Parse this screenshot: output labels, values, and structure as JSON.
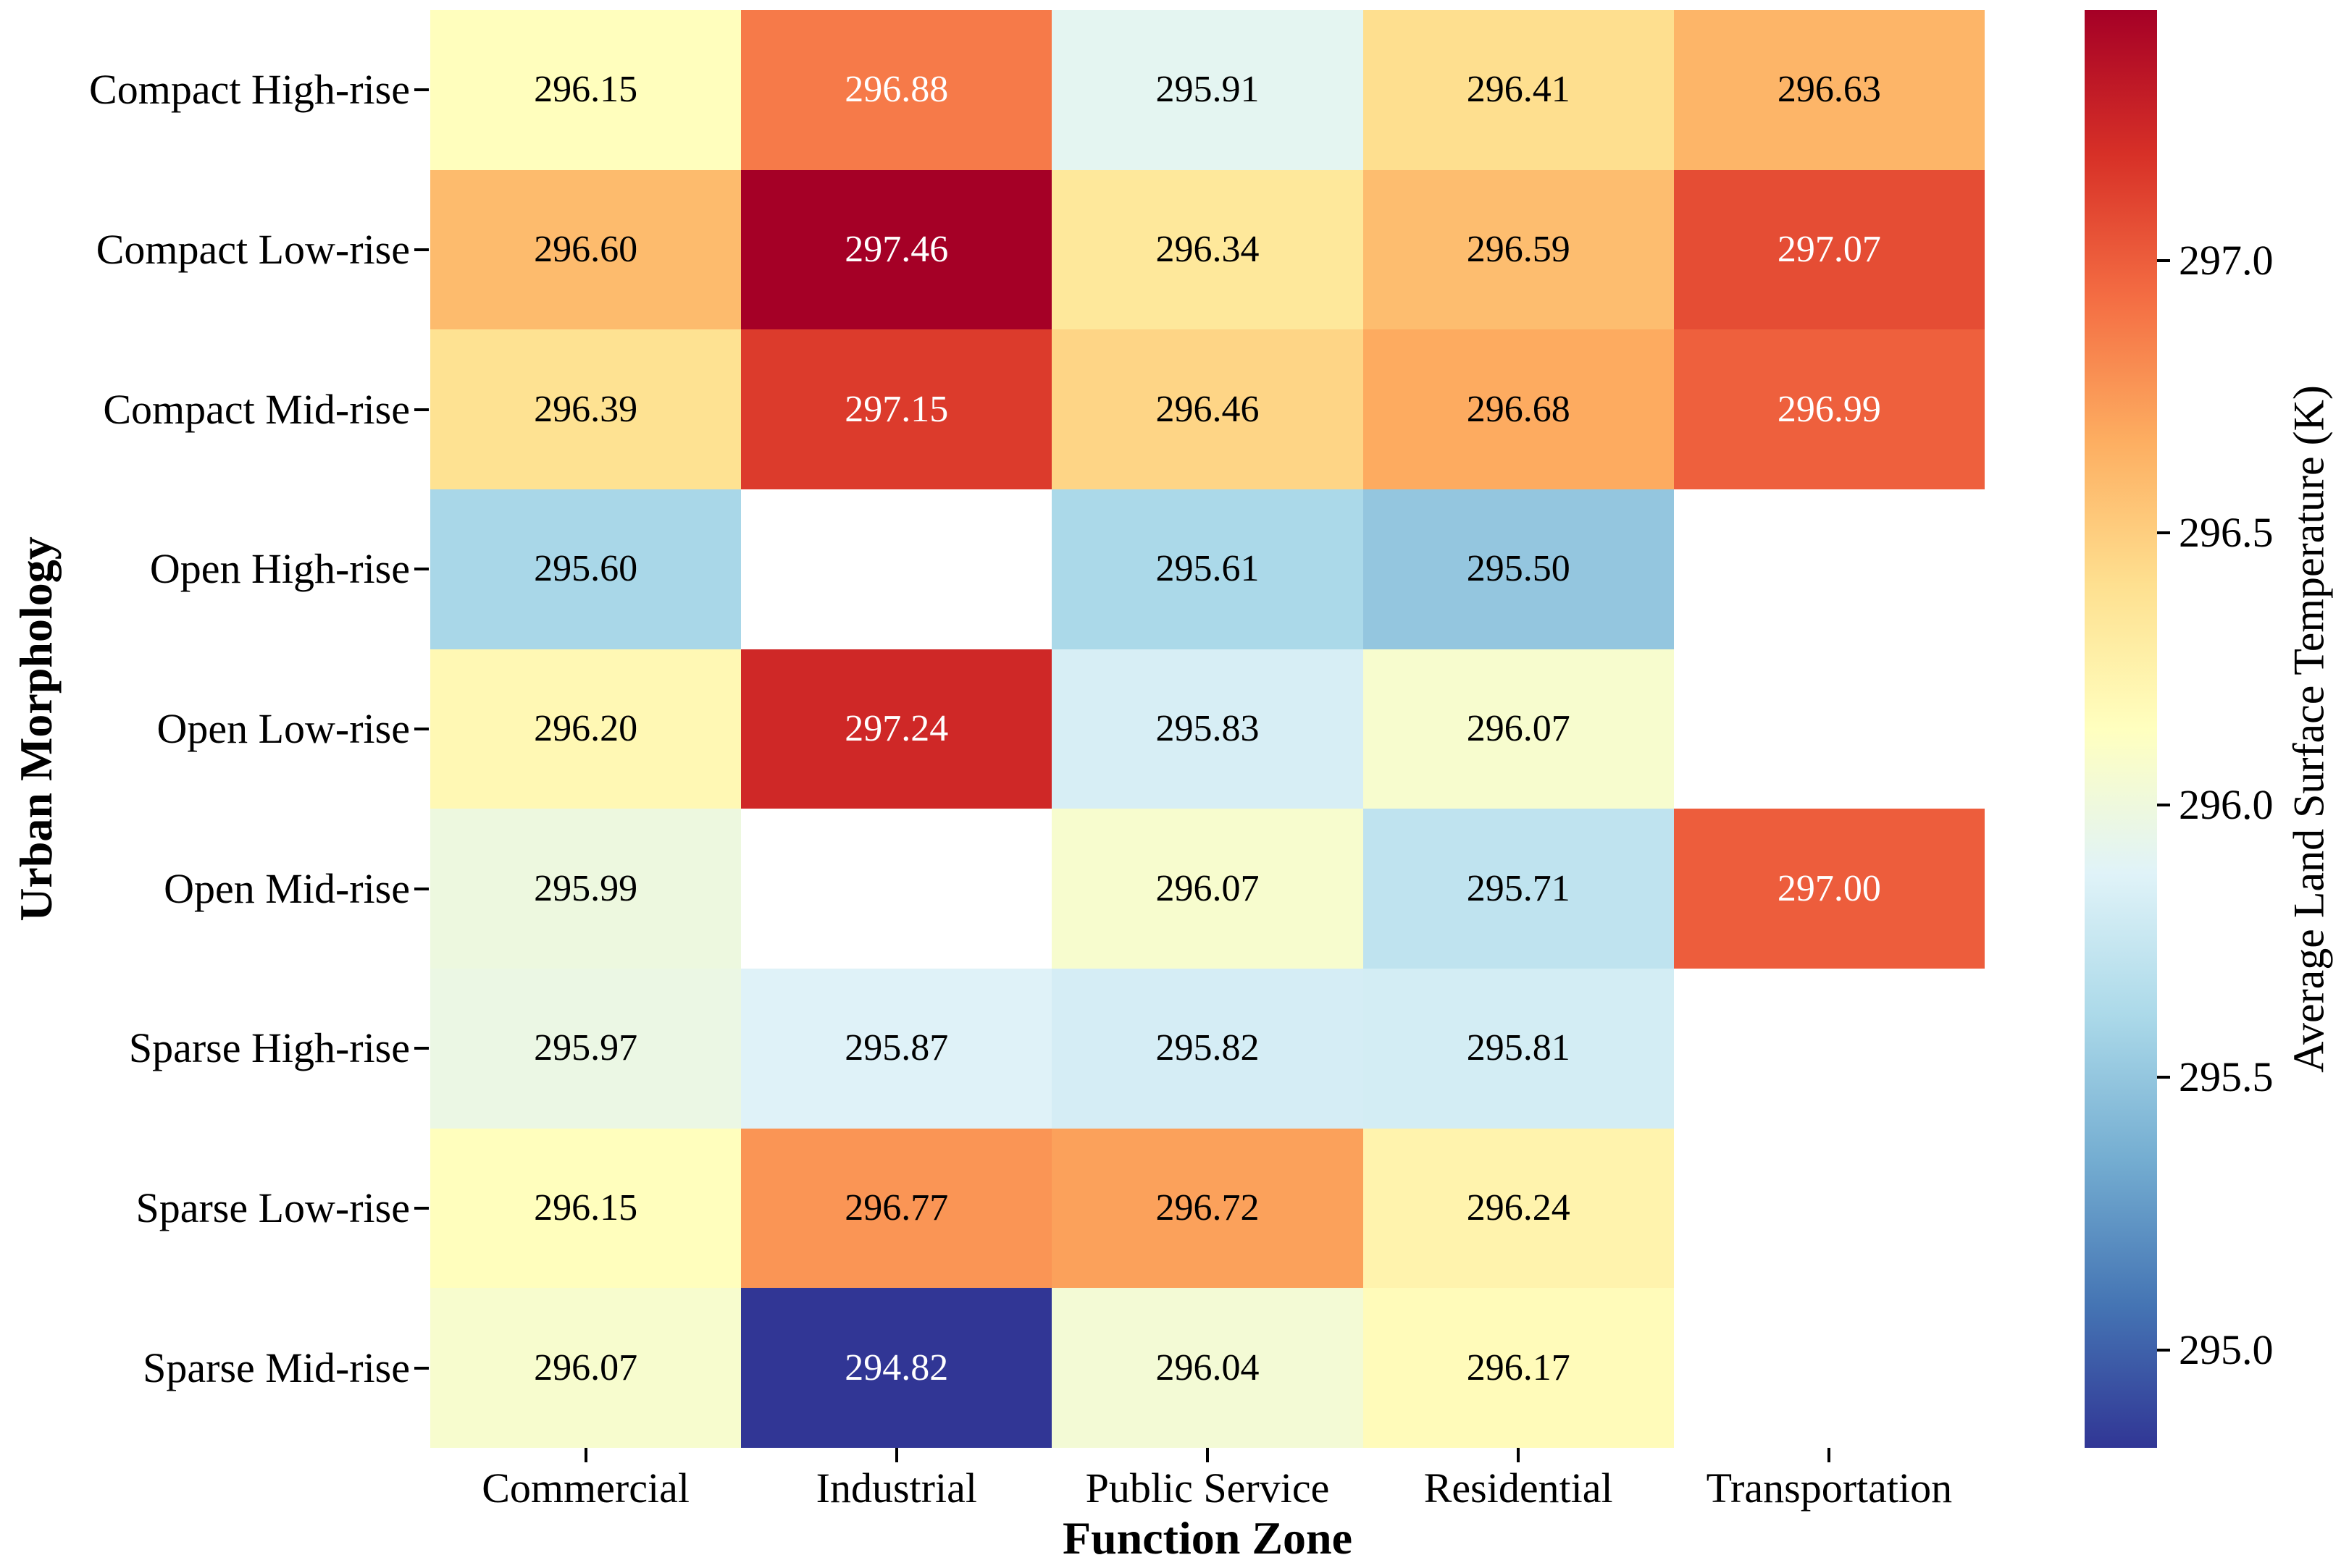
{
  "chart_data": {
    "type": "heatmap",
    "xlabel": "Function Zone",
    "ylabel": "Urban Morphology",
    "colorbar_label": "Average Land Surface Temperature (K)",
    "columns": [
      "Commercial",
      "Industrial",
      "Public Service",
      "Residential",
      "Transportation"
    ],
    "rows": [
      "Compact High-rise",
      "Compact Low-rise",
      "Compact Mid-rise",
      "Open High-rise",
      "Open Low-rise",
      "Open Mid-rise",
      "Sparse High-rise",
      "Sparse Low-rise",
      "Sparse Mid-rise"
    ],
    "values": [
      [
        296.15,
        296.88,
        295.91,
        296.41,
        296.63
      ],
      [
        296.6,
        297.46,
        296.34,
        296.59,
        297.07
      ],
      [
        296.39,
        297.15,
        296.46,
        296.68,
        296.99
      ],
      [
        295.6,
        null,
        295.61,
        295.5,
        null
      ],
      [
        296.2,
        297.24,
        295.83,
        296.07,
        null
      ],
      [
        295.99,
        null,
        296.07,
        295.71,
        297.0
      ],
      [
        295.97,
        295.87,
        295.82,
        295.81,
        null
      ],
      [
        296.15,
        296.77,
        296.72,
        296.24,
        null
      ],
      [
        296.07,
        294.82,
        296.04,
        296.17,
        null
      ]
    ],
    "vmin": 294.82,
    "vmax": 297.46,
    "colormap": "RdYlBu_r",
    "colormap_stops": [
      "#313695",
      "#4575b4",
      "#74add1",
      "#abd9e9",
      "#e0f3f8",
      "#ffffbf",
      "#fee090",
      "#fdae61",
      "#f46d43",
      "#d73027",
      "#a50026"
    ],
    "colorbar_ticks": [
      295.0,
      295.5,
      296.0,
      296.5,
      297.0
    ],
    "missing_cell_color": "#ffffff",
    "annotation_colors": {
      "dark": "#000000",
      "light": "#ffffff"
    },
    "grid": true,
    "legend_position": "right-colorbar"
  }
}
